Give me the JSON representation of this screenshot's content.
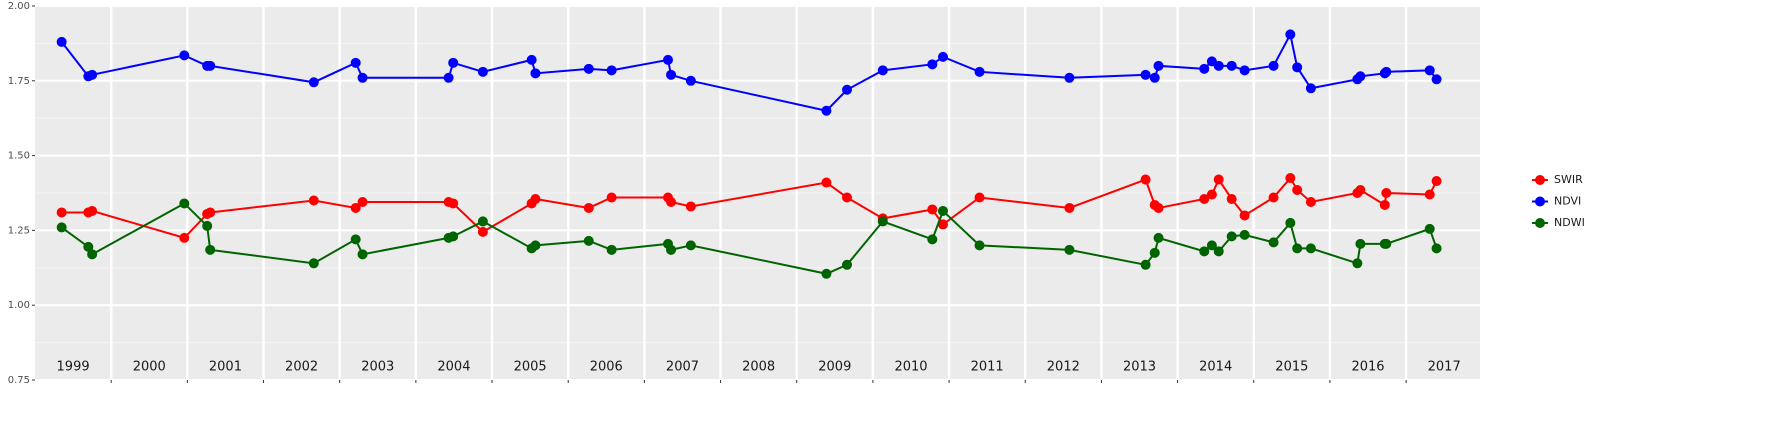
{
  "chart_data": {
    "type": "line",
    "x": [
      1999.35,
      1999.7,
      1999.75,
      2000.96,
      2001.26,
      2001.3,
      2002.66,
      2003.21,
      2003.3,
      2004.43,
      2004.49,
      2004.88,
      2005.52,
      2005.57,
      2006.27,
      2006.57,
      2007.31,
      2007.35,
      2007.61,
      2009.39,
      2009.66,
      2010.13,
      2010.78,
      2010.92,
      2011.4,
      2012.58,
      2013.58,
      2013.7,
      2013.75,
      2014.35,
      2014.45,
      2014.54,
      2014.71,
      2014.88,
      2015.26,
      2015.48,
      2015.57,
      2015.75,
      2016.36,
      2016.4,
      2016.72,
      2016.74,
      2017.31,
      2017.4
    ],
    "series": [
      {
        "name": "SWIR",
        "color": "#ff0000",
        "values": [
          1.31,
          1.31,
          1.315,
          1.225,
          1.305,
          1.31,
          1.35,
          1.325,
          1.345,
          1.345,
          1.34,
          1.245,
          1.34,
          1.355,
          1.325,
          1.36,
          1.36,
          1.345,
          1.33,
          1.41,
          1.36,
          1.29,
          1.32,
          1.27,
          1.36,
          1.325,
          1.42,
          1.335,
          1.325,
          1.355,
          1.37,
          1.42,
          1.355,
          1.3,
          1.36,
          1.425,
          1.385,
          1.345,
          1.375,
          1.385,
          1.335,
          1.375,
          1.37,
          1.415
        ]
      },
      {
        "name": "NDVI",
        "color": "#0000ff",
        "values": [
          1.88,
          1.765,
          1.77,
          1.835,
          1.8,
          1.8,
          1.745,
          1.81,
          1.76,
          1.76,
          1.81,
          1.78,
          1.82,
          1.775,
          1.79,
          1.785,
          1.82,
          1.77,
          1.75,
          1.65,
          1.72,
          1.785,
          1.805,
          1.83,
          1.78,
          1.76,
          1.77,
          1.76,
          1.8,
          1.79,
          1.815,
          1.8,
          1.8,
          1.785,
          1.8,
          1.905,
          1.795,
          1.725,
          1.755,
          1.765,
          1.775,
          1.78,
          1.785,
          1.755
        ]
      },
      {
        "name": "NDWI",
        "color": "#006400",
        "values": [
          1.26,
          1.195,
          1.17,
          1.34,
          1.265,
          1.185,
          1.14,
          1.22,
          1.17,
          1.225,
          1.23,
          1.28,
          1.19,
          1.2,
          1.215,
          1.185,
          1.205,
          1.185,
          1.2,
          1.105,
          1.135,
          1.28,
          1.22,
          1.315,
          1.2,
          1.185,
          1.135,
          1.175,
          1.225,
          1.18,
          1.2,
          1.18,
          1.23,
          1.235,
          1.21,
          1.275,
          1.19,
          1.19,
          1.14,
          1.205,
          1.205,
          1.205,
          1.255,
          1.19
        ]
      }
    ],
    "xlim": [
      1999,
      2017.97
    ],
    "xticks": [
      {
        "value": 1999.5,
        "label": "1999"
      },
      {
        "value": 2000.5,
        "label": "2000"
      },
      {
        "value": 2001.5,
        "label": "2001"
      },
      {
        "value": 2002.5,
        "label": "2002"
      },
      {
        "value": 2003.5,
        "label": "2003"
      },
      {
        "value": 2004.5,
        "label": "2004"
      },
      {
        "value": 2005.5,
        "label": "2005"
      },
      {
        "value": 2006.5,
        "label": "2006"
      },
      {
        "value": 2007.5,
        "label": "2007"
      },
      {
        "value": 2008.5,
        "label": "2008"
      },
      {
        "value": 2009.5,
        "label": "2009"
      },
      {
        "value": 2010.5,
        "label": "2010"
      },
      {
        "value": 2011.5,
        "label": "2011"
      },
      {
        "value": 2012.5,
        "label": "2012"
      },
      {
        "value": 2013.5,
        "label": "2013"
      },
      {
        "value": 2014.5,
        "label": "2014"
      },
      {
        "value": 2015.5,
        "label": "2015"
      },
      {
        "value": 2016.5,
        "label": "2016"
      },
      {
        "value": 2017.5,
        "label": "2017"
      }
    ],
    "xgrid": [
      2000,
      2001,
      2002,
      2003,
      2004,
      2005,
      2006,
      2007,
      2008,
      2009,
      2010,
      2011,
      2012,
      2013,
      2014,
      2015,
      2016,
      2017
    ],
    "ylim": [
      0.75,
      2.0
    ],
    "yticks": [
      {
        "value": 0.75,
        "label": "0.75"
      },
      {
        "value": 1.0,
        "label": "1.00"
      },
      {
        "value": 1.25,
        "label": "1.25"
      },
      {
        "value": 1.5,
        "label": "1.50"
      },
      {
        "value": 1.75,
        "label": "1.75"
      },
      {
        "value": 2.0,
        "label": "2.00"
      }
    ],
    "grid": true,
    "legend": "right"
  }
}
